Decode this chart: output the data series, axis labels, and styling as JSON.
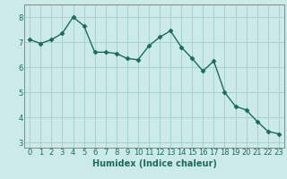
{
  "x": [
    0,
    1,
    2,
    3,
    4,
    5,
    6,
    7,
    8,
    9,
    10,
    11,
    12,
    13,
    14,
    15,
    16,
    17,
    18,
    19,
    20,
    21,
    22,
    23
  ],
  "y": [
    7.1,
    6.95,
    7.1,
    7.35,
    8.0,
    7.65,
    6.6,
    6.6,
    6.55,
    6.35,
    6.3,
    6.85,
    7.2,
    7.45,
    6.8,
    6.35,
    5.85,
    6.25,
    5.0,
    4.45,
    4.3,
    3.85,
    3.45,
    3.35
  ],
  "line_color": "#1a6b5e",
  "marker": "D",
  "markersize": 2.5,
  "linewidth": 1.0,
  "xlabel": "Humidex (Indice chaleur)",
  "xlabel_fontsize": 7,
  "xlabel_fontweight": "bold",
  "background_color": "#cceae7",
  "grid_color": "#aad4cf",
  "xlim": [
    -0.5,
    23.5
  ],
  "ylim": [
    2.8,
    8.5
  ],
  "yticks": [
    3,
    4,
    5,
    6,
    7,
    8
  ],
  "xticks": [
    0,
    1,
    2,
    3,
    4,
    5,
    6,
    7,
    8,
    9,
    10,
    11,
    12,
    13,
    14,
    15,
    16,
    17,
    18,
    19,
    20,
    21,
    22,
    23
  ],
  "tick_fontsize": 6,
  "spine_color": "#888888"
}
